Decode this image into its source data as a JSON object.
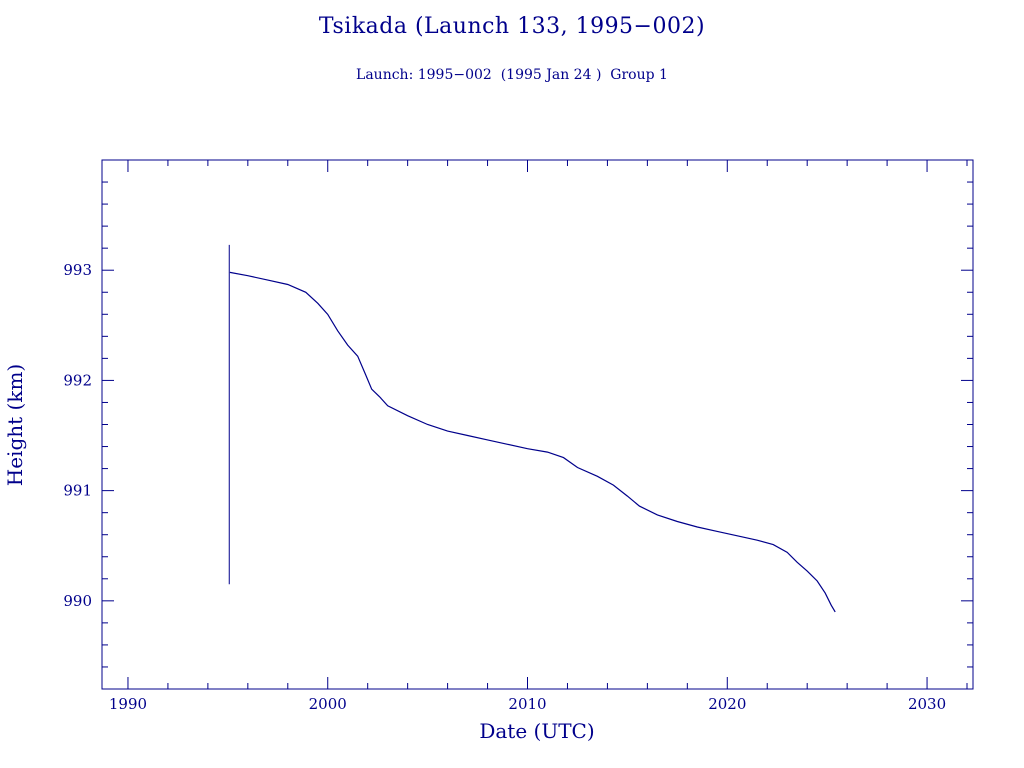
{
  "title": "Tsikada (Launch 133, 1995−002)",
  "subtitle": "Launch: 1995−002  (1995 Jan 24 )  Group 1",
  "colors": {
    "ink": "#00008b",
    "background": "#ffffff"
  },
  "chart_data": {
    "type": "line",
    "xlabel": "Date (UTC)",
    "ylabel": "Height (km)",
    "xlim": [
      1988.7,
      2032.3
    ],
    "ylim": [
      989.2,
      994.0
    ],
    "xticks": [
      1990,
      2000,
      2010,
      2020,
      2030
    ],
    "yticks": [
      990,
      991,
      992,
      993
    ],
    "grid": false,
    "launch_marker": {
      "x": 1995.07,
      "y_from": 990.15,
      "y_to": 993.23
    },
    "series": [
      {
        "x": [
          1995.1,
          1996.0,
          1997.0,
          1998.0,
          1998.9,
          1999.5,
          2000.0,
          2000.5,
          2001.0,
          2001.5,
          2001.9,
          2002.2,
          2002.6,
          2003.0,
          2004.0,
          2005.0,
          2006.0,
          2007.0,
          2008.0,
          2009.0,
          2010.0,
          2011.0,
          2011.8,
          2012.5,
          2013.5,
          2014.3,
          2015.0,
          2015.6,
          2016.5,
          2017.5,
          2018.5,
          2019.5,
          2020.5,
          2021.5,
          2022.3,
          2023.0,
          2023.5,
          2024.0,
          2024.5,
          2024.9,
          2025.2,
          2025.4
        ],
        "y": [
          992.98,
          992.95,
          992.91,
          992.87,
          992.8,
          992.7,
          992.6,
          992.45,
          992.32,
          992.22,
          992.05,
          991.92,
          991.85,
          991.77,
          991.68,
          991.6,
          991.54,
          991.5,
          991.46,
          991.42,
          991.38,
          991.35,
          991.3,
          991.21,
          991.13,
          991.05,
          990.95,
          990.86,
          990.78,
          990.72,
          990.67,
          990.63,
          990.59,
          990.55,
          990.51,
          990.44,
          990.35,
          990.27,
          990.18,
          990.07,
          989.96,
          989.9
        ]
      }
    ]
  }
}
